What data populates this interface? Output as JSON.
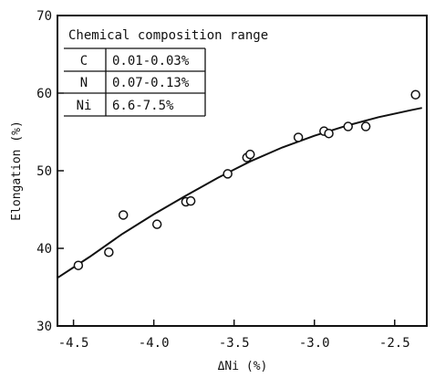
{
  "chart_data": {
    "type": "scatter",
    "title": "",
    "xlabel": "ΔNi (%)",
    "ylabel": "Elongation (%)",
    "xlim": [
      -4.6,
      -2.3
    ],
    "ylim": [
      30,
      70
    ],
    "xticks": [
      -4.5,
      -4.0,
      -3.5,
      -3.0,
      -2.5
    ],
    "xtick_labels": [
      "-4.5",
      "-4.0",
      "-3.5",
      "-3.0",
      "-2.5"
    ],
    "yticks": [
      30,
      40,
      50,
      60,
      70
    ],
    "ytick_labels": [
      "30",
      "40",
      "50",
      "60",
      "70"
    ],
    "grid": false,
    "series": [
      {
        "x": [
          -4.47,
          -4.28,
          -4.19,
          -3.98,
          -3.8,
          -3.77,
          -3.54,
          -3.42,
          -3.4,
          -3.1,
          -2.94,
          -2.91,
          -2.79,
          -2.68,
          -2.37
        ],
        "y": [
          37.8,
          39.5,
          44.3,
          43.1,
          46.0,
          46.1,
          49.6,
          51.7,
          52.1,
          54.3,
          55.1,
          54.8,
          55.7,
          55.7,
          59.8
        ]
      }
    ],
    "fit_curve": {
      "x": [
        -4.6,
        -4.4,
        -4.2,
        -4.0,
        -3.8,
        -3.6,
        -3.4,
        -3.2,
        -3.0,
        -2.8,
        -2.6,
        -2.4,
        -2.33
      ],
      "y": [
        36.2,
        38.9,
        41.8,
        44.4,
        46.8,
        49.1,
        51.2,
        53.0,
        54.5,
        55.8,
        56.9,
        57.8,
        58.1
      ]
    },
    "annotation_table": {
      "title": "Chemical composition range",
      "rows": [
        {
          "element": "C",
          "range": "0.01-0.03%"
        },
        {
          "element": "N",
          "range": "0.07-0.13%"
        },
        {
          "element": "Ni",
          "range": "6.6-7.5%"
        }
      ]
    }
  }
}
